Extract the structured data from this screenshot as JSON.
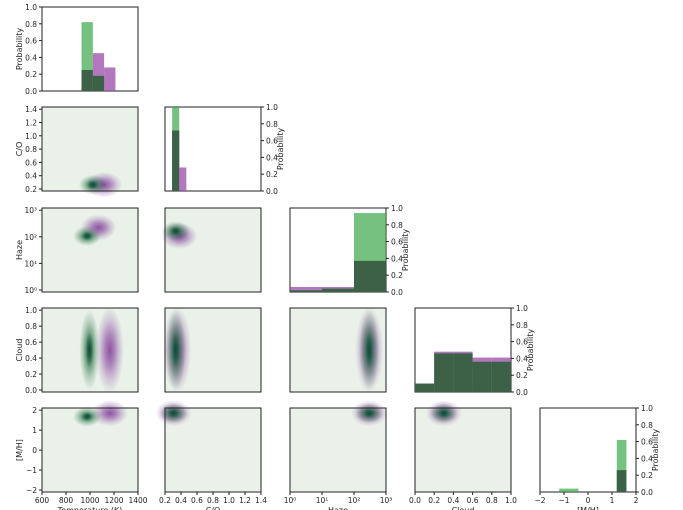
{
  "chart_data": {
    "type": "corner",
    "colors": {
      "green": "#3aa64a",
      "purple": "#9a4aa8",
      "overlap": "#37573f",
      "panel_bg": "#e9f1e9"
    },
    "parameters": [
      {
        "key": "T",
        "xlabel": "Temperature (K)",
        "ylabel": "",
        "ticks": [
          "600",
          "800",
          "1000",
          "1200",
          "1400"
        ]
      },
      {
        "key": "CO",
        "xlabel": "C/O",
        "ylabel": "C/O",
        "ticks": [
          "0.2",
          "0.4",
          "0.6",
          "0.8",
          "1.0",
          "1.2",
          "1.4"
        ]
      },
      {
        "key": "Haze",
        "xlabel": "Haze",
        "ylabel": "Haze",
        "ticks": [
          "10⁰",
          "10¹",
          "10²",
          "10³"
        ]
      },
      {
        "key": "Cloud",
        "xlabel": "Cloud",
        "ylabel": "Cloud",
        "ticks": [
          "0.0",
          "0.2",
          "0.4",
          "0.6",
          "0.8",
          "1.0"
        ]
      },
      {
        "key": "MH",
        "xlabel": "[M/H]",
        "ylabel": "[M/H]",
        "ticks": [
          "−2",
          "−1",
          "0",
          "1",
          "2"
        ]
      }
    ],
    "y_ticks": {
      "prob": [
        "0.0",
        "0.2",
        "0.4",
        "0.6",
        "0.8",
        "1.0"
      ],
      "CO": [
        "0.2",
        "0.4",
        "0.6",
        "0.8",
        "1.0",
        "1.2",
        "1.4"
      ],
      "Haze": [
        "10⁰",
        "10¹",
        "10²",
        "10³"
      ],
      "Cloud": [
        "0.0",
        "0.2",
        "0.4",
        "0.6",
        "0.8",
        "1.0"
      ],
      "MH": [
        "−2",
        "−1",
        "0",
        "1",
        "2"
      ]
    },
    "prob_label": "Probability",
    "histograms": [
      {
        "param": "Temperature",
        "bins": [
          800,
          900,
          1000,
          1100,
          1200,
          1300
        ],
        "green": [
          0.0,
          0.82,
          0.18,
          0.0,
          0.0
        ],
        "purple": [
          0.0,
          0.25,
          0.45,
          0.28,
          0.0
        ]
      },
      {
        "param": "C/O",
        "bins": [
          0.2,
          0.3,
          0.4
        ],
        "green": [
          1.0,
          0.0
        ],
        "purple": [
          0.72,
          0.28
        ]
      },
      {
        "param": "Haze",
        "bins": [
          "10^0",
          "10^1",
          "10^2",
          "10^3"
        ],
        "green": [
          0.02,
          0.04,
          0.94
        ],
        "purple": [
          0.06,
          0.06,
          0.37
        ]
      },
      {
        "param": "Cloud",
        "bins": [
          0.0,
          0.2,
          0.4,
          0.6,
          0.8,
          1.0
        ],
        "green": [
          0.1,
          0.46,
          0.46,
          0.36,
          0.36
        ],
        "purple": [
          0.1,
          0.48,
          0.48,
          0.41,
          0.41
        ]
      },
      {
        "param": "[M/H]",
        "bins": [
          -1.5,
          -0.5,
          1.5,
          2.0
        ],
        "green": [
          0.04,
          0.0,
          0.62
        ],
        "purple": [
          0.0,
          0.0,
          0.26
        ]
      }
    ],
    "posteriors_2d": [
      {
        "x": "Temperature",
        "y": "C/O",
        "green_peak": [
          1000,
          0.25
        ],
        "purple_peak": [
          1100,
          0.25
        ]
      },
      {
        "x": "Temperature",
        "y": "Haze",
        "green_peak": [
          950,
          100
        ],
        "purple_peak": [
          1050,
          200
        ]
      },
      {
        "x": "C/O",
        "y": "Haze",
        "green_peak": [
          0.25,
          150
        ],
        "purple_peak": [
          0.3,
          100
        ]
      },
      {
        "x": "Temperature",
        "y": "Cloud",
        "green_peak": [
          970,
          0.5
        ],
        "purple_peak": [
          1150,
          0.5
        ]
      },
      {
        "x": "C/O",
        "y": "Cloud",
        "green_peak": [
          0.25,
          0.5
        ],
        "purple_peak": [
          0.27,
          0.5
        ]
      },
      {
        "x": "Haze",
        "y": "Cloud",
        "green_peak": [
          300,
          0.5
        ],
        "purple_peak": [
          300,
          0.5
        ]
      },
      {
        "x": "Temperature",
        "y": "[M/H]",
        "green_peak": [
          950,
          1.8
        ],
        "purple_peak": [
          1150,
          2.0
        ]
      },
      {
        "x": "C/O",
        "y": "[M/H]",
        "green_peak": [
          0.22,
          2.0
        ],
        "purple_peak": [
          0.22,
          2.0
        ]
      },
      {
        "x": "Haze",
        "y": "[M/H]",
        "green_peak": [
          300,
          2.0
        ],
        "purple_peak": [
          300,
          2.0
        ]
      },
      {
        "x": "Cloud",
        "y": "[M/H]",
        "green_peak": [
          0.3,
          2.0
        ],
        "purple_peak": [
          0.3,
          2.0
        ]
      }
    ]
  }
}
